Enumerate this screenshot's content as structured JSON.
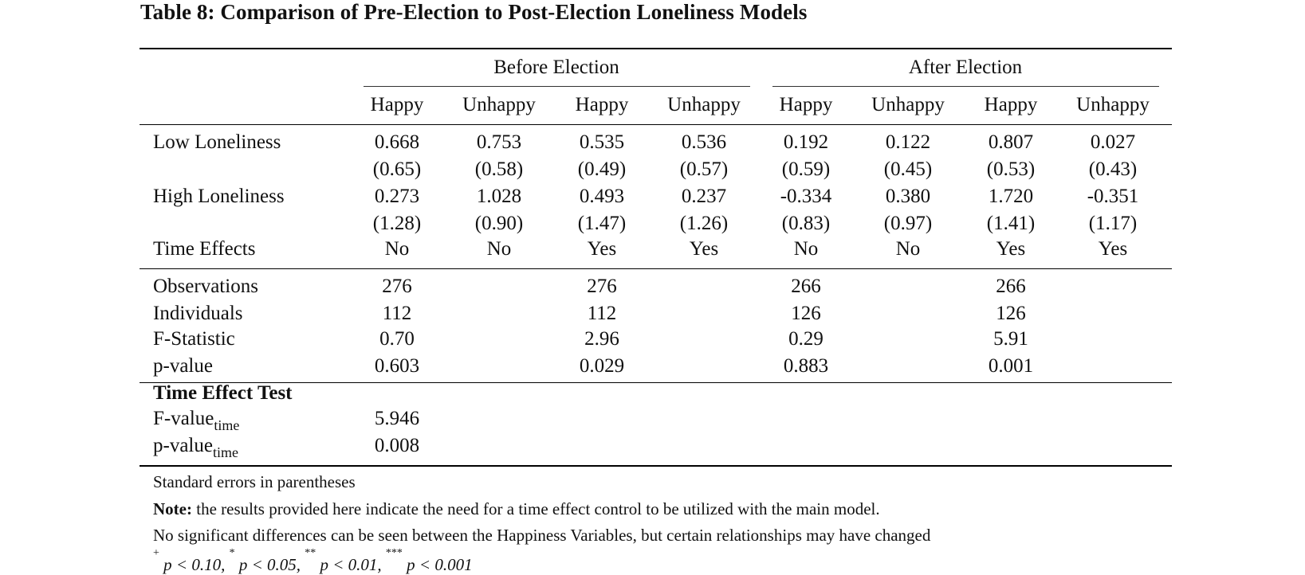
{
  "title": "Table 8: Comparison of Pre-Election to Post-Election Loneliness Models",
  "groups": [
    "Before Election",
    "After Election"
  ],
  "columns": [
    "Happy",
    "Unhappy",
    "Happy",
    "Unhappy",
    "Happy",
    "Unhappy",
    "Happy",
    "Unhappy"
  ],
  "coef_rows": [
    {
      "label": "Low Loneliness",
      "values": [
        "0.668",
        "0.753",
        "0.535",
        "0.536",
        "0.192",
        "0.122",
        "0.807",
        "0.027"
      ],
      "se": [
        "(0.65)",
        "(0.58)",
        "(0.49)",
        "(0.57)",
        "(0.59)",
        "(0.45)",
        "(0.53)",
        "(0.43)"
      ]
    },
    {
      "label": "High Loneliness",
      "values": [
        "0.273",
        "1.028",
        "0.493",
        "0.237",
        "-0.334",
        "0.380",
        "1.720",
        "-0.351"
      ],
      "se": [
        "(1.28)",
        "(0.90)",
        "(1.47)",
        "(1.26)",
        "(0.83)",
        "(0.97)",
        "(1.41)",
        "(1.17)"
      ]
    }
  ],
  "time_effects": {
    "label": "Time Effects",
    "values": [
      "No",
      "No",
      "Yes",
      "Yes",
      "No",
      "No",
      "Yes",
      "Yes"
    ]
  },
  "stats_rows": [
    {
      "label": "Observations",
      "values": [
        "276",
        "276",
        "266",
        "266"
      ]
    },
    {
      "label": "Individuals",
      "values": [
        "112",
        "112",
        "126",
        "126"
      ]
    },
    {
      "label": "F-Statistic",
      "values": [
        "0.70",
        "2.96",
        "0.29",
        "5.91"
      ]
    },
    {
      "label": "p-value",
      "values": [
        "0.603",
        "0.029",
        "0.883",
        "0.001"
      ]
    }
  ],
  "time_test": {
    "heading": "Time Effect Test",
    "fvalue_label": "F-value",
    "fvalue_sub": "time",
    "fvalue": "5.946",
    "pvalue_label": "p-value",
    "pvalue_sub": "time",
    "pvalue": "0.008"
  },
  "notes": {
    "line1": "Standard errors in parentheses",
    "note_label": "Note:",
    "line2": " the results provided here indicate the need for a time effect control to be utilized with the main model.",
    "line3": "No significant differences can be seen between the Happiness Variables, but certain relationships may have changed",
    "sig": {
      "s1": "+",
      "t1": "p < 0.10, ",
      "s2": "*",
      "t2": "p < 0.05, ",
      "s3": "**",
      "t3": "p < 0.01, ",
      "s4": "***",
      "t4": "p < 0.001"
    }
  }
}
